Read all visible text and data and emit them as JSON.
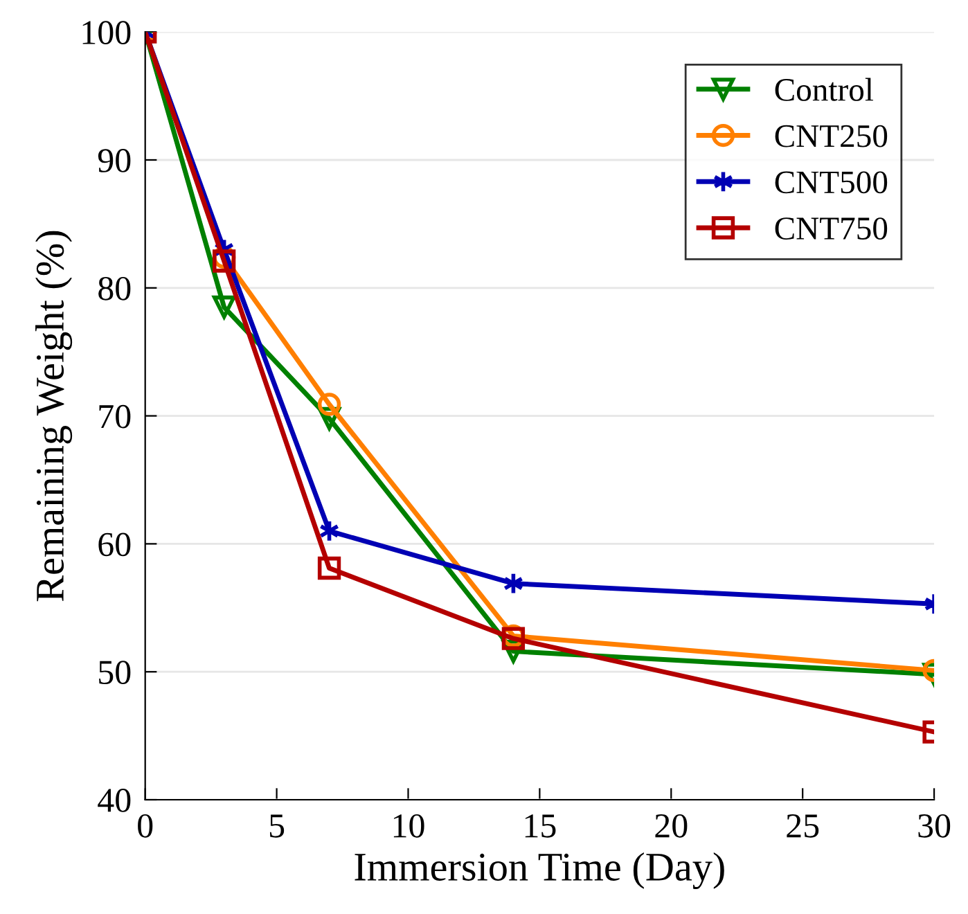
{
  "chart_data": {
    "type": "line",
    "xlabel": "Immersion Time (Day)",
    "ylabel": "Remaining Weight (%)",
    "x": [
      0,
      3,
      7,
      14,
      30
    ],
    "series": [
      {
        "name": "Control",
        "color": "#008000",
        "marker": "triangle",
        "values": [
          100,
          78.5,
          69.8,
          51.6,
          49.8
        ]
      },
      {
        "name": "CNT250",
        "color": "#ff7f00",
        "marker": "circle",
        "values": [
          100,
          82.4,
          70.9,
          52.8,
          50.1
        ]
      },
      {
        "name": "CNT500",
        "color": "#0000b4",
        "marker": "cross",
        "values": [
          100,
          83.0,
          61.0,
          56.9,
          55.3
        ]
      },
      {
        "name": "CNT750",
        "color": "#b40000",
        "marker": "square",
        "values": [
          100,
          82.1,
          58.1,
          52.6,
          45.3
        ]
      }
    ],
    "xlim": [
      0,
      30
    ],
    "xticks": [
      0,
      5,
      10,
      15,
      20,
      25,
      30
    ],
    "ylim": [
      40,
      100
    ],
    "yticks": [
      40,
      50,
      60,
      70,
      80,
      90,
      100
    ],
    "grid": "y",
    "legend": "top right",
    "line_style": "solid"
  }
}
